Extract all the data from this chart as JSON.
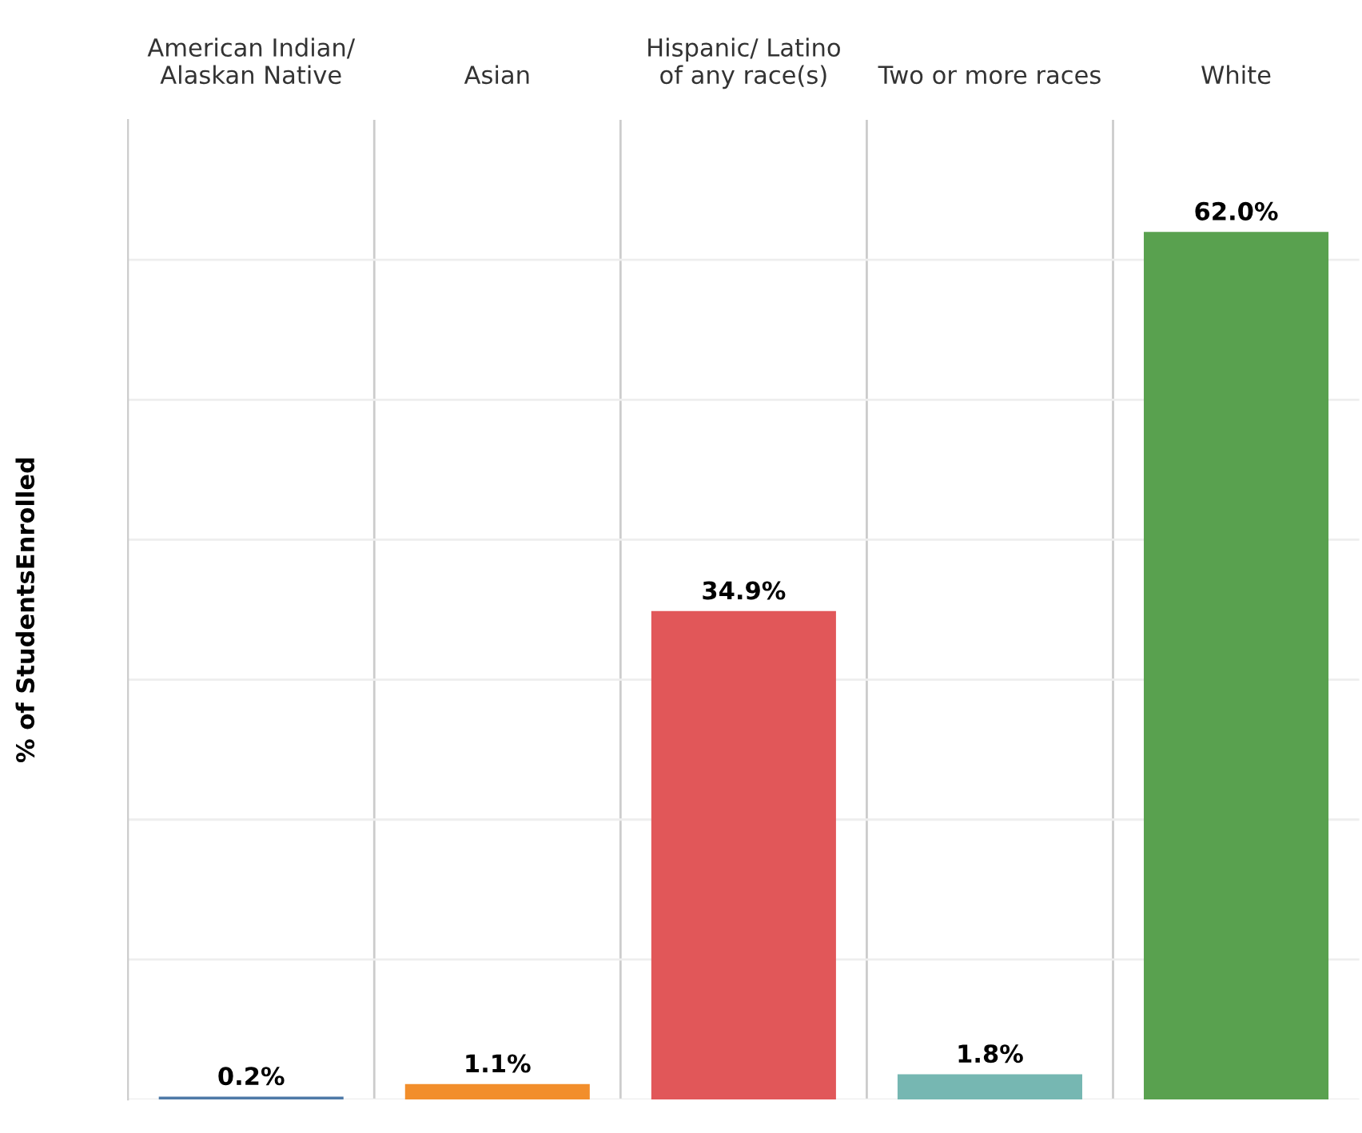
{
  "chart_data": {
    "type": "bar",
    "ylabel": "% of StudentsEnrolled",
    "categories": [
      "American Indian/\nAlaskan Native",
      "Asian",
      "Hispanic/ Latino\nof any race(s)",
      "Two or more races",
      "White"
    ],
    "values": [
      0.2,
      1.1,
      34.9,
      1.8,
      62.0
    ],
    "value_labels": [
      "0.2%",
      "1.1%",
      "34.9%",
      "1.8%",
      "62.0%"
    ],
    "colors": [
      "#4e79a7",
      "#f28e2b",
      "#e15759",
      "#76b7b2",
      "#59a14f"
    ],
    "ylim": [
      0,
      70
    ],
    "yticks": [
      {
        "value": 0,
        "label": null
      },
      {
        "value": 10,
        "label": null
      },
      {
        "value": 20,
        "label": null
      },
      {
        "value": 30,
        "label": null
      },
      {
        "value": 40,
        "label": null
      },
      {
        "value": 50,
        "label": null
      },
      {
        "value": 60,
        "label": null
      }
    ],
    "grid": "y",
    "tick_labels": "x"
  }
}
